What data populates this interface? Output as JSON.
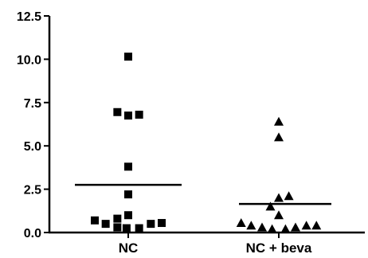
{
  "chart_data": {
    "type": "scatter",
    "title": "",
    "xlabel": "",
    "ylabel": "",
    "categories": [
      "NC",
      "NC + beva"
    ],
    "ylim": [
      0,
      12.5
    ],
    "yticks": [
      "0.0",
      "2.5",
      "5.0",
      "7.5",
      "10.0",
      "12.5"
    ],
    "grid": false,
    "legend": "none",
    "series": [
      {
        "category": "NC",
        "marker": "square",
        "mean": 2.75,
        "points": [
          {
            "offset": -0.4,
            "y": 0.7
          },
          {
            "offset": -0.27,
            "y": 0.5
          },
          {
            "offset": -0.13,
            "y": 0.8
          },
          {
            "offset": -0.13,
            "y": 0.3
          },
          {
            "offset": -0.13,
            "y": 6.95
          },
          {
            "offset": -0.02,
            "y": 0.25
          },
          {
            "offset": 0.0,
            "y": 10.15
          },
          {
            "offset": 0.0,
            "y": 6.75
          },
          {
            "offset": 0.0,
            "y": 3.8
          },
          {
            "offset": 0.0,
            "y": 2.2
          },
          {
            "offset": 0.0,
            "y": 1.0
          },
          {
            "offset": 0.13,
            "y": 6.8
          },
          {
            "offset": 0.13,
            "y": 0.25
          },
          {
            "offset": 0.27,
            "y": 0.5
          },
          {
            "offset": 0.4,
            "y": 0.55
          }
        ]
      },
      {
        "category": "NC + beva",
        "marker": "triangle",
        "mean": 1.65,
        "points": [
          {
            "offset": -0.45,
            "y": 0.55
          },
          {
            "offset": -0.33,
            "y": 0.4
          },
          {
            "offset": -0.2,
            "y": 0.3
          },
          {
            "offset": -0.1,
            "y": 1.5
          },
          {
            "offset": -0.08,
            "y": 0.2
          },
          {
            "offset": 0.0,
            "y": 6.4
          },
          {
            "offset": 0.0,
            "y": 5.5
          },
          {
            "offset": 0.0,
            "y": 2.0
          },
          {
            "offset": 0.0,
            "y": 1.0
          },
          {
            "offset": 0.08,
            "y": 0.2
          },
          {
            "offset": 0.12,
            "y": 2.1
          },
          {
            "offset": 0.2,
            "y": 0.3
          },
          {
            "offset": 0.33,
            "y": 0.4
          },
          {
            "offset": 0.45,
            "y": 0.4
          }
        ]
      }
    ]
  },
  "colors": {
    "ink": "#000000",
    "background": "#ffffff"
  }
}
